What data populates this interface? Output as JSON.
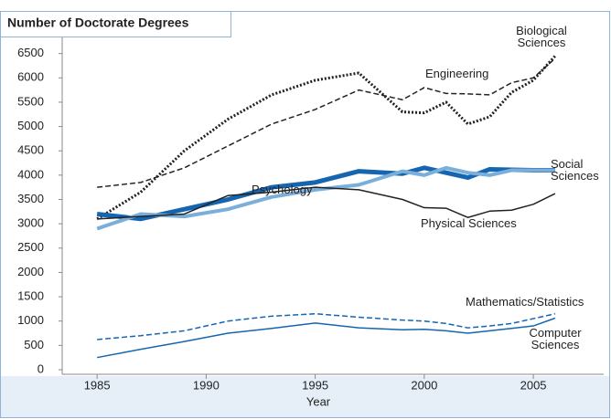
{
  "chart_data": {
    "type": "line",
    "title": "Number of Doctorate Degrees",
    "x_label": "Year",
    "x": [
      1985,
      1987,
      1989,
      1991,
      1993,
      1995,
      1997,
      1999,
      2000,
      2001,
      2002,
      2003,
      2004,
      2005,
      2006
    ],
    "series": [
      {
        "name": "Biological Sciences",
        "color": "#222222",
        "style": "dotted",
        "width": 3,
        "values": [
          3100,
          3650,
          4500,
          5150,
          5650,
          5950,
          6100,
          5300,
          5280,
          5500,
          5050,
          5200,
          5700,
          5950,
          6450
        ]
      },
      {
        "name": "Engineering",
        "color": "#222222",
        "style": "dashed",
        "width": 1.5,
        "values": [
          3750,
          3850,
          4150,
          4600,
          5050,
          5350,
          5750,
          5550,
          5800,
          5680,
          5670,
          5650,
          5900,
          6000,
          6400
        ]
      },
      {
        "name": "Social Sciences",
        "color": "#1565b0",
        "style": "solid",
        "width": 5,
        "values": [
          3200,
          3100,
          3300,
          3500,
          3750,
          3850,
          4080,
          4030,
          4150,
          4050,
          3950,
          4120,
          4110,
          4100,
          4100
        ]
      },
      {
        "name": "Psychology",
        "color": "#7aaedb",
        "style": "solid",
        "width": 4,
        "values": [
          2900,
          3200,
          3150,
          3300,
          3550,
          3700,
          3800,
          4080,
          4000,
          4150,
          4050,
          4000,
          4100,
          4100,
          4100
        ]
      },
      {
        "name": "Physical Sciences",
        "color": "#222222",
        "style": "solid",
        "width": 1.5,
        "values": [
          3100,
          3150,
          3200,
          3580,
          3650,
          3750,
          3700,
          3500,
          3330,
          3320,
          3130,
          3260,
          3280,
          3400,
          3620
        ]
      },
      {
        "name": "Mathematics/Statistics",
        "color": "#1565b0",
        "style": "dashed",
        "width": 1.5,
        "values": [
          620,
          700,
          800,
          1000,
          1100,
          1150,
          1080,
          1020,
          1000,
          950,
          860,
          900,
          950,
          1050,
          1150
        ]
      },
      {
        "name": "Computer Sciences",
        "color": "#1565b0",
        "style": "solid",
        "width": 1.5,
        "values": [
          250,
          420,
          580,
          750,
          850,
          960,
          860,
          820,
          830,
          800,
          750,
          800,
          850,
          900,
          1060
        ]
      }
    ],
    "xlim": [
      1983.4,
      2008.1
    ],
    "ylim": [
      0,
      6850
    ],
    "xticks": [
      1985,
      1990,
      1995,
      2000,
      2005
    ],
    "yticks": [
      0,
      500,
      1000,
      1500,
      2000,
      2500,
      3000,
      3500,
      4000,
      4500,
      5000,
      5500,
      6000,
      6500
    ],
    "grid": false
  }
}
